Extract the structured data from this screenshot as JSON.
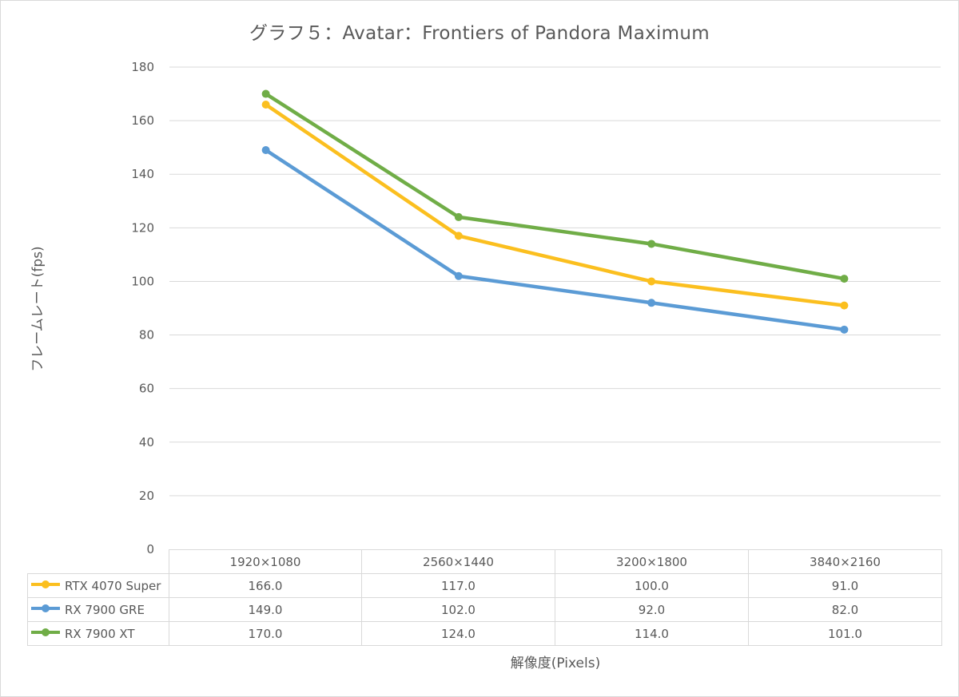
{
  "chart_data": {
    "type": "line",
    "title": "グラフ５：Avatar：Frontiers of Pandora Maximum",
    "ylabel": "フレームレート(fps)",
    "xlabel": "解像度(Pixels)",
    "ylim": [
      0,
      180
    ],
    "yticks": [
      0,
      20,
      40,
      60,
      80,
      100,
      120,
      140,
      160,
      180
    ],
    "grid": true,
    "legend": "data-table",
    "categories": [
      "1920×1080",
      "2560×1440",
      "3200×1800",
      "3840×2160"
    ],
    "series": [
      {
        "name": "RTX 4070 Super",
        "color": "#fbbf1f",
        "values": [
          166.0,
          117.0,
          100.0,
          91.0
        ],
        "labels": [
          "166.0",
          "117.0",
          "100.0",
          "91.0"
        ]
      },
      {
        "name": "RX 7900 GRE",
        "color": "#5b9bd5",
        "values": [
          149.0,
          102.0,
          92.0,
          82.0
        ],
        "labels": [
          "149.0",
          "102.0",
          "92.0",
          "82.0"
        ]
      },
      {
        "name": "RX 7900 XT",
        "color": "#70ad47",
        "values": [
          170.0,
          124.0,
          114.0,
          101.0
        ],
        "labels": [
          "170.0",
          "124.0",
          "114.0",
          "101.0"
        ]
      }
    ]
  }
}
